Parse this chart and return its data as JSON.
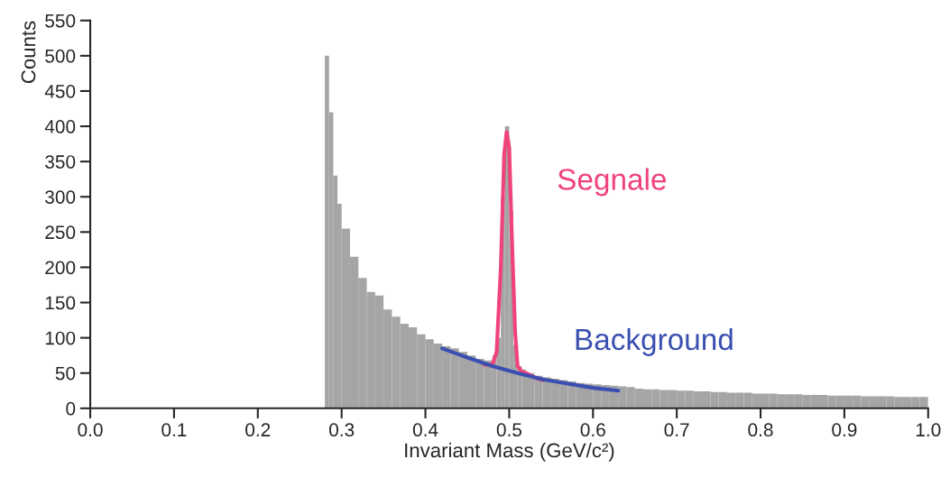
{
  "chart_data": {
    "type": "histogram",
    "xlabel": "Invariant Mass (GeV/c²)",
    "ylabel": "Counts",
    "bins": [
      0.28,
      0.285,
      0.29,
      0.295,
      0.3,
      0.31,
      0.32,
      0.33,
      0.34,
      0.35,
      0.36,
      0.37,
      0.38,
      0.39,
      0.4,
      0.41,
      0.42,
      0.43,
      0.44,
      0.45,
      0.46,
      0.47,
      0.48,
      0.485,
      0.49,
      0.495,
      0.5,
      0.505,
      0.51,
      0.515,
      0.52,
      0.53,
      0.54,
      0.55,
      0.56,
      0.57,
      0.58,
      0.59,
      0.6,
      0.61,
      0.62,
      0.63,
      0.64,
      0.65,
      0.66,
      0.67,
      0.68,
      0.69,
      0.7,
      0.71,
      0.72,
      0.73,
      0.74,
      0.75,
      0.76,
      0.77,
      0.78,
      0.79,
      0.8,
      0.81,
      0.82,
      0.83,
      0.84,
      0.85,
      0.86,
      0.87,
      0.88,
      0.89,
      0.9,
      0.91,
      0.92,
      0.93,
      0.94,
      0.95,
      0.96,
      0.97,
      0.98,
      0.99,
      1.0
    ],
    "values": [
      500,
      420,
      330,
      290,
      255,
      215,
      185,
      165,
      160,
      140,
      130,
      120,
      115,
      105,
      98,
      92,
      88,
      85,
      80,
      75,
      70,
      68,
      75,
      100,
      300,
      400,
      280,
      90,
      60,
      55,
      50,
      46,
      44,
      42,
      40,
      38,
      36,
      35,
      34,
      33,
      32,
      31,
      30,
      28,
      27,
      27,
      26,
      26,
      25,
      25,
      24,
      24,
      23,
      23,
      22,
      22,
      22,
      21,
      21,
      21,
      20,
      20,
      20,
      19,
      19,
      19,
      18,
      18,
      18,
      18,
      17,
      17,
      17,
      17,
      16,
      16,
      16,
      16
    ],
    "color": "#a5a5a5",
    "series": [
      {
        "type": "line",
        "name": "Segnale",
        "color": "#f0437a",
        "x": [
          0.47,
          0.48,
          0.485,
          0.49,
          0.494,
          0.497,
          0.5,
          0.503,
          0.507,
          0.51,
          0.515,
          0.52,
          0.53,
          0.54
        ],
        "values": [
          62,
          62,
          80,
          200,
          360,
          392,
          370,
          250,
          110,
          60,
          52,
          50,
          44,
          40
        ]
      },
      {
        "type": "line",
        "name": "Background",
        "color": "#3a4fb0",
        "x": [
          0.42,
          0.45,
          0.48,
          0.51,
          0.54,
          0.57,
          0.6,
          0.63
        ],
        "values": [
          85,
          72,
          60,
          50,
          41,
          35,
          29,
          25
        ]
      }
    ],
    "xlim": [
      0,
      1.0
    ],
    "ylim": [
      0,
      550
    ],
    "xticks": [
      {
        "value": 0,
        "label": "0.0"
      },
      0.1,
      0.2,
      0.3,
      0.4,
      0.5,
      0.6,
      0.7,
      0.8,
      0.9,
      {
        "value": 1.0,
        "label": "1.0"
      }
    ],
    "yticks": [
      0,
      50,
      100,
      150,
      200,
      250,
      300,
      350,
      400,
      450,
      500,
      550
    ],
    "grid": false,
    "legend": false
  }
}
